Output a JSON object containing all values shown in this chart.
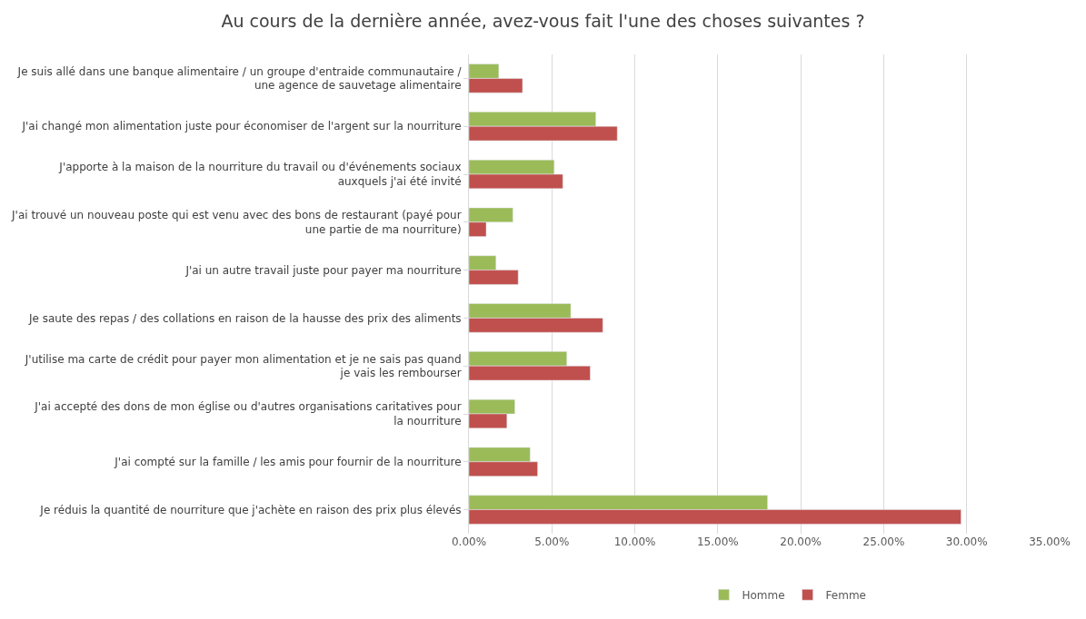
{
  "chart_data": {
    "type": "bar",
    "orientation": "horizontal",
    "title": "Au cours de la dernière année, avez-vous fait l'une des choses suivantes ?",
    "categories": [
      "Je suis allé dans une banque alimentaire / un groupe d'entraide communautaire / une agence de sauvetage alimentaire",
      "J'ai changé mon alimentation juste pour économiser de l'argent sur la nourriture",
      "J'apporte à la maison de la nourriture du travail ou d'événements sociaux auxquels j'ai été invité",
      "J'ai trouvé un nouveau poste qui est venu avec des bons de restaurant (payé pour une partie de ma nourriture)",
      "J'ai un autre travail juste pour payer ma nourriture",
      "Je saute des repas / des collations en raison de la hausse des prix des aliments",
      "J'utilise ma carte de crédit pour payer mon alimentation et je ne sais pas quand je vais les rembourser",
      "J'ai accepté des dons de mon église ou d'autres organisations caritatives pour la nourriture",
      "J'ai compté sur la famille / les amis pour fournir de la nourriture",
      "Je réduis la quantité de nourriture que j'achète en raison des prix plus élevés"
    ],
    "series": [
      {
        "name": "Homme",
        "color": "#9bbb59",
        "values": [
          1.8,
          7.65,
          5.14,
          2.65,
          1.63,
          6.14,
          5.9,
          2.77,
          3.69,
          18.0
        ]
      },
      {
        "name": "Femme",
        "color": "#c0504d",
        "values": [
          3.23,
          8.94,
          5.66,
          1.04,
          2.97,
          8.07,
          7.31,
          2.29,
          4.14,
          29.66
        ]
      }
    ],
    "xlim": [
      0,
      35
    ],
    "xticks": [
      {
        "value": 0,
        "label": "0.00%"
      },
      {
        "value": 5,
        "label": "5.00%"
      },
      {
        "value": 10,
        "label": "10.00%"
      },
      {
        "value": 15,
        "label": "15.00%"
      },
      {
        "value": 20,
        "label": "20.00%"
      },
      {
        "value": 25,
        "label": "25.00%"
      },
      {
        "value": 30,
        "label": "30.00%"
      },
      {
        "value": 35,
        "label": "35.00%"
      }
    ],
    "grid": "x",
    "legend": "bottom"
  }
}
